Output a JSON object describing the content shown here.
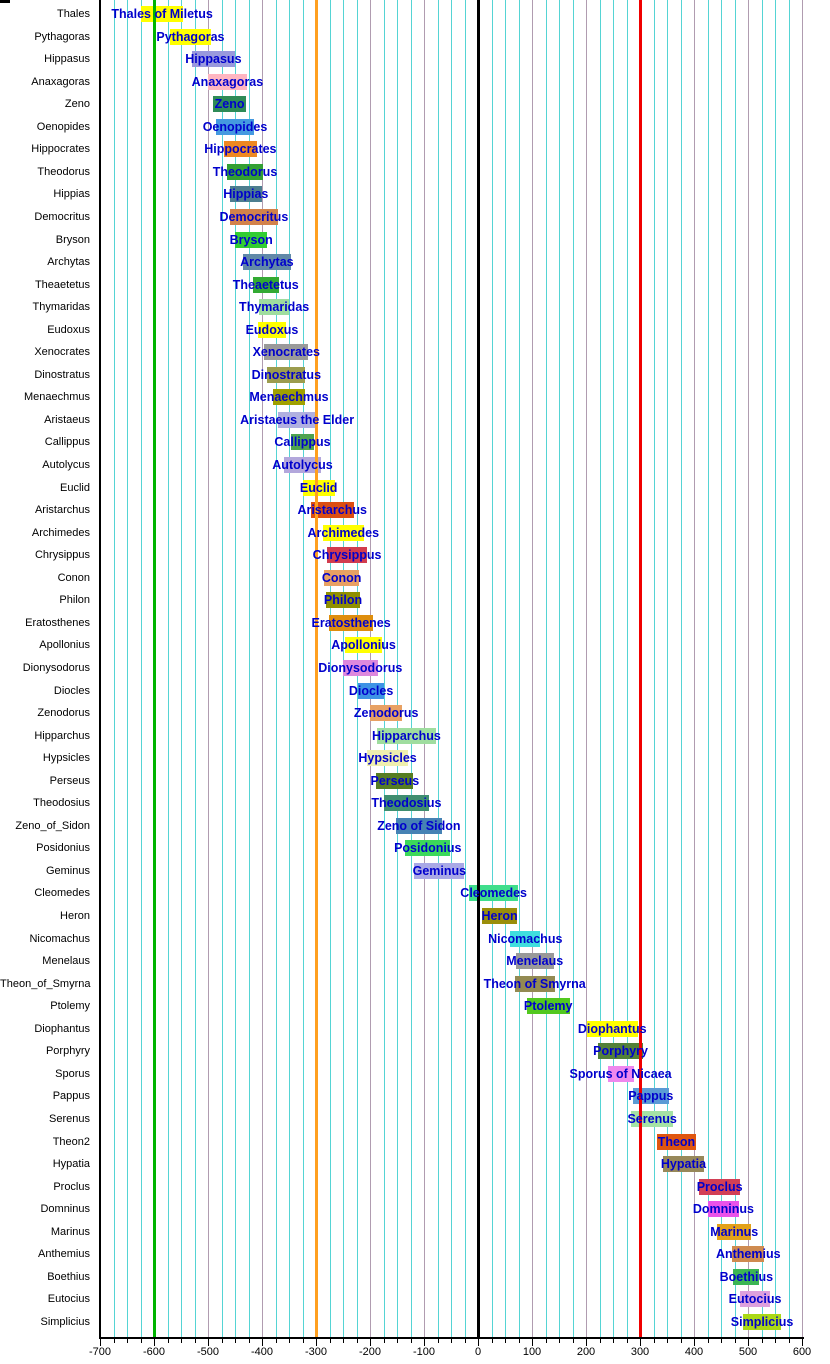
{
  "chart_data": {
    "type": "bar",
    "subtype": "timeline-gantt",
    "title": "",
    "xlabel": "",
    "ylabel": "",
    "x_axis": {
      "min": -700,
      "max": 600,
      "major_step": 100,
      "minor_step": 25,
      "tick_labels": [
        "-700",
        "-600",
        "-500",
        "-400",
        "-300",
        "-200",
        "-100",
        "0",
        "100",
        "200",
        "300",
        "400",
        "500",
        "600"
      ]
    },
    "grid": {
      "minor_color": "#55D4D4",
      "major_color": "#B09CB0"
    },
    "reference_lines": [
      {
        "year": -600,
        "color": "#00B400"
      },
      {
        "year": -300,
        "color": "#FFA020"
      },
      {
        "year": 0,
        "color": "#000000"
      },
      {
        "year": 300,
        "color": "#F00000"
      }
    ],
    "bar_label_color": "#0000CC",
    "rows": [
      {
        "label": "Thales",
        "bar_label": "Thales of Miletus",
        "start": -624,
        "end": -546,
        "color": "#FFFF00"
      },
      {
        "label": "Pythagoras",
        "bar_label": "Pythagoras",
        "start": -570,
        "end": -495,
        "color": "#FFFF00"
      },
      {
        "label": "Hippasus",
        "bar_label": "Hippasus",
        "start": -530,
        "end": -450,
        "color": "#9999DD"
      },
      {
        "label": "Anaxagoras",
        "bar_label": "Anaxagoras",
        "start": -500,
        "end": -428,
        "color": "#FFB6C1"
      },
      {
        "label": "Zeno",
        "bar_label": "Zeno",
        "start": -490,
        "end": -430,
        "color": "#2E8B57"
      },
      {
        "label": "Oenopides",
        "bar_label": "Oenopides",
        "start": -485,
        "end": -415,
        "color": "#4499E0"
      },
      {
        "label": "Hippocrates",
        "bar_label": "Hippocrates",
        "start": -470,
        "end": -410,
        "color": "#EE8822"
      },
      {
        "label": "Theodorus",
        "bar_label": "Theodorus",
        "start": -465,
        "end": -398,
        "color": "#33A033"
      },
      {
        "label": "Hippias",
        "bar_label": "Hippias",
        "start": -460,
        "end": -400,
        "color": "#4D7E8F"
      },
      {
        "label": "Democritus",
        "bar_label": "Democritus",
        "start": -460,
        "end": -370,
        "color": "#D2824B"
      },
      {
        "label": "Bryson",
        "bar_label": "Bryson",
        "start": -450,
        "end": -390,
        "color": "#32CD32"
      },
      {
        "label": "Archytas",
        "bar_label": "Archytas",
        "start": -435,
        "end": -347,
        "color": "#6189A8"
      },
      {
        "label": "Theaetetus",
        "bar_label": "Theaetetus",
        "start": -417,
        "end": -369,
        "color": "#33AA33"
      },
      {
        "label": "Thymaridas",
        "bar_label": "Thymaridas",
        "start": -405,
        "end": -350,
        "color": "#9FDD9F"
      },
      {
        "label": "Eudoxus",
        "bar_label": "Eudoxus",
        "start": -408,
        "end": -355,
        "color": "#FFFF00"
      },
      {
        "label": "Xenocrates",
        "bar_label": "Xenocrates",
        "start": -396,
        "end": -314,
        "color": "#9A9A9A"
      },
      {
        "label": "Dinostratus",
        "bar_label": "Dinostratus",
        "start": -390,
        "end": -320,
        "color": "#9C9C4E"
      },
      {
        "label": "Menaechmus",
        "bar_label": "Menaechmus",
        "start": -380,
        "end": -320,
        "color": "#A0A000"
      },
      {
        "label": "Aristaeus",
        "bar_label": "Aristaeus the Elder",
        "start": -370,
        "end": -300,
        "color": "#B0B0E0"
      },
      {
        "label": "Callippus",
        "bar_label": "Callippus",
        "start": -347,
        "end": -303,
        "color": "#4FA34F"
      },
      {
        "label": "Autolycus",
        "bar_label": "Autolycus",
        "start": -360,
        "end": -290,
        "color": "#B3A7DC"
      },
      {
        "label": "Euclid",
        "bar_label": "Euclid",
        "start": -325,
        "end": -265,
        "color": "#FFFF00"
      },
      {
        "label": "Aristarchus",
        "bar_label": "Aristarchus",
        "start": -310,
        "end": -230,
        "color": "#DC4E12"
      },
      {
        "label": "Archimedes",
        "bar_label": "Archimedes",
        "start": -287,
        "end": -212,
        "color": "#FFFF00"
      },
      {
        "label": "Chrysippus",
        "bar_label": "Chrysippus",
        "start": -279,
        "end": -206,
        "color": "#D23C4E"
      },
      {
        "label": "Conon",
        "bar_label": "Conon",
        "start": -285,
        "end": -220,
        "color": "#E8A163"
      },
      {
        "label": "Philon",
        "bar_label": "Philon",
        "start": -282,
        "end": -218,
        "color": "#8F8F00"
      },
      {
        "label": "Eratosthenes",
        "bar_label": "Eratosthenes",
        "start": -276,
        "end": -194,
        "color": "#DE8E0D"
      },
      {
        "label": "Apollonius",
        "bar_label": "Apollonius",
        "start": -246,
        "end": -178,
        "color": "#FFFF00"
      },
      {
        "label": "Dionysodorus",
        "bar_label": "Dionysodorus",
        "start": -250,
        "end": -186,
        "color": "#DD88DD"
      },
      {
        "label": "Diocles",
        "bar_label": "Diocles",
        "start": -222,
        "end": -174,
        "color": "#3E93E5"
      },
      {
        "label": "Zenodorus",
        "bar_label": "Zenodorus",
        "start": -200,
        "end": -140,
        "color": "#E8A163"
      },
      {
        "label": "Hipparchus",
        "bar_label": "Hipparchus",
        "start": -187,
        "end": -78,
        "color": "#9FDD9F"
      },
      {
        "label": "Hypsicles",
        "bar_label": "Hypsicles",
        "start": -205,
        "end": -130,
        "color": "#EFEFAF"
      },
      {
        "label": "Perseus",
        "bar_label": "Perseus",
        "start": -188,
        "end": -120,
        "color": "#567D22"
      },
      {
        "label": "Theodosius",
        "bar_label": "Theodosius",
        "start": -175,
        "end": -90,
        "color": "#3F8E70"
      },
      {
        "label": "Zeno_of_Sidon",
        "bar_label": "Zeno of Sidon",
        "start": -152,
        "end": -67,
        "color": "#4682B4"
      },
      {
        "label": "Posidonius",
        "bar_label": "Posidonius",
        "start": -135,
        "end": -51,
        "color": "#3CD85A"
      },
      {
        "label": "Geminus",
        "bar_label": "Geminus",
        "start": -118,
        "end": -25,
        "color": "#A9A9E6"
      },
      {
        "label": "Cleomedes",
        "bar_label": "Cleomedes",
        "start": -17,
        "end": 75,
        "color": "#3FDE8C"
      },
      {
        "label": "Heron",
        "bar_label": "Heron",
        "start": 8,
        "end": 72,
        "color": "#9A8E0A"
      },
      {
        "label": "Nicomachus",
        "bar_label": "Nicomachus",
        "start": 60,
        "end": 115,
        "color": "#3FDEDE"
      },
      {
        "label": "Menelaus",
        "bar_label": "Menelaus",
        "start": 70,
        "end": 140,
        "color": "#999999"
      },
      {
        "label": "Theon_of_Smyrna",
        "bar_label": "Theon of Smyrna",
        "start": 68,
        "end": 142,
        "color": "#938A52"
      },
      {
        "label": "Ptolemy",
        "bar_label": "Ptolemy",
        "start": 90,
        "end": 170,
        "color": "#52C81F"
      },
      {
        "label": "Diophantus",
        "bar_label": "Diophantus",
        "start": 201,
        "end": 296,
        "color": "#FFFF00"
      },
      {
        "label": "Porphyry",
        "bar_label": "Porphyry",
        "start": 222,
        "end": 306,
        "color": "#52803A"
      },
      {
        "label": "Sporus",
        "bar_label": "Sporus of Nicaea",
        "start": 240,
        "end": 288,
        "color": "#EE88EE"
      },
      {
        "label": "Pappus",
        "bar_label": "Pappus",
        "start": 287,
        "end": 353,
        "color": "#5B9BD5"
      },
      {
        "label": "Serenus",
        "bar_label": "Serenus",
        "start": 283,
        "end": 362,
        "color": "#A5E2A5"
      },
      {
        "label": "Theon2",
        "bar_label": "Theon",
        "start": 332,
        "end": 403,
        "color": "#E0560F"
      },
      {
        "label": "Hypatia",
        "bar_label": "Hypatia",
        "start": 343,
        "end": 418,
        "color": "#97885A"
      },
      {
        "label": "Proclus",
        "bar_label": "Proclus",
        "start": 410,
        "end": 485,
        "color": "#D23F55"
      },
      {
        "label": "Domninus",
        "bar_label": "Domninus",
        "start": 425,
        "end": 484,
        "color": "#EA52EA"
      },
      {
        "label": "Marinus",
        "bar_label": "Marinus",
        "start": 443,
        "end": 506,
        "color": "#E3A118"
      },
      {
        "label": "Anthemius",
        "bar_label": "Anthemius",
        "start": 471,
        "end": 530,
        "color": "#CF8B50"
      },
      {
        "label": "Boethius",
        "bar_label": "Boethius",
        "start": 473,
        "end": 521,
        "color": "#3CB554"
      },
      {
        "label": "Eutocius",
        "bar_label": "Eutocius",
        "start": 486,
        "end": 540,
        "color": "#DDA0DD"
      },
      {
        "label": "Simplicius",
        "bar_label": "Simplicius",
        "start": 490,
        "end": 562,
        "color": "#AAD816"
      }
    ]
  }
}
